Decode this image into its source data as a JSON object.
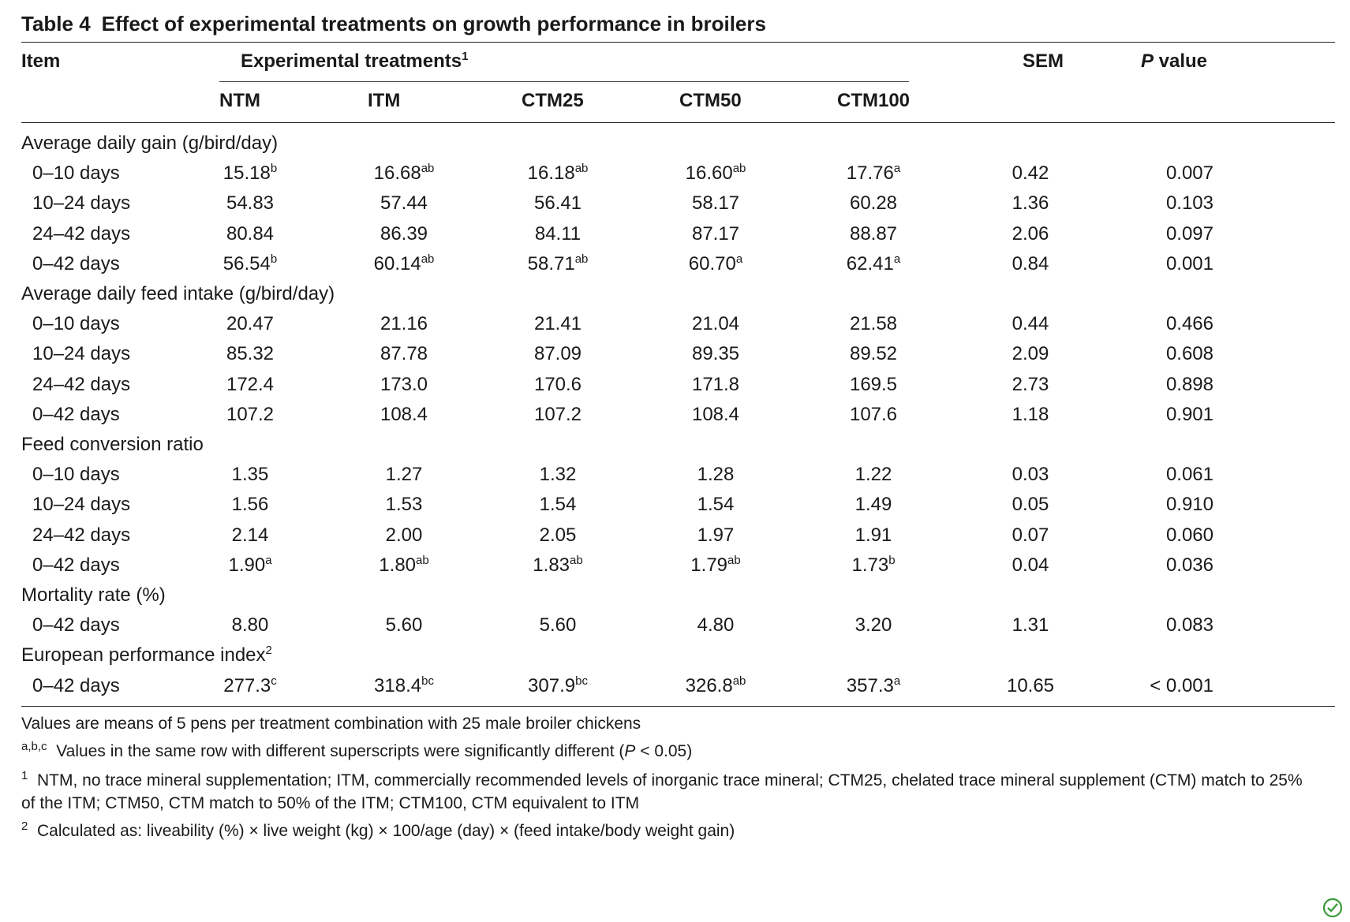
{
  "title": {
    "number": "Table 4",
    "text": "Effect of experimental treatments on growth performance in broilers"
  },
  "header": {
    "item": "Item",
    "group": "Experimental treatments",
    "group_sup": "1",
    "treatments": [
      "NTM",
      "ITM",
      "CTM25",
      "CTM50",
      "CTM100"
    ],
    "sem": "SEM",
    "pvalue_italic": "P",
    "pvalue_rest": " value"
  },
  "sections": [
    {
      "label": "Average daily gain (g/bird/day)",
      "label_sup": "",
      "rows": [
        {
          "item": "0–10 days",
          "values": [
            {
              "v": "15.18",
              "s": "b"
            },
            {
              "v": "16.68",
              "s": "ab"
            },
            {
              "v": "16.18",
              "s": "ab"
            },
            {
              "v": "16.60",
              "s": "ab"
            },
            {
              "v": "17.76",
              "s": "a"
            }
          ],
          "sem": "0.42",
          "p": "0.007"
        },
        {
          "item": "10–24 days",
          "values": [
            {
              "v": "54.83",
              "s": ""
            },
            {
              "v": "57.44",
              "s": ""
            },
            {
              "v": "56.41",
              "s": ""
            },
            {
              "v": "58.17",
              "s": ""
            },
            {
              "v": "60.28",
              "s": ""
            }
          ],
          "sem": "1.36",
          "p": "0.103"
        },
        {
          "item": "24–42 days",
          "values": [
            {
              "v": "80.84",
              "s": ""
            },
            {
              "v": "86.39",
              "s": ""
            },
            {
              "v": "84.11",
              "s": ""
            },
            {
              "v": "87.17",
              "s": ""
            },
            {
              "v": "88.87",
              "s": ""
            }
          ],
          "sem": "2.06",
          "p": "0.097"
        },
        {
          "item": "0–42 days",
          "values": [
            {
              "v": "56.54",
              "s": "b"
            },
            {
              "v": "60.14",
              "s": "ab"
            },
            {
              "v": "58.71",
              "s": "ab"
            },
            {
              "v": "60.70",
              "s": "a"
            },
            {
              "v": "62.41",
              "s": "a"
            }
          ],
          "sem": "0.84",
          "p": "0.001"
        }
      ]
    },
    {
      "label": "Average daily feed intake (g/bird/day)",
      "label_sup": "",
      "rows": [
        {
          "item": "0–10 days",
          "values": [
            {
              "v": "20.47",
              "s": ""
            },
            {
              "v": "21.16",
              "s": ""
            },
            {
              "v": "21.41",
              "s": ""
            },
            {
              "v": "21.04",
              "s": ""
            },
            {
              "v": "21.58",
              "s": ""
            }
          ],
          "sem": "0.44",
          "p": "0.466"
        },
        {
          "item": "10–24 days",
          "values": [
            {
              "v": "85.32",
              "s": ""
            },
            {
              "v": "87.78",
              "s": ""
            },
            {
              "v": "87.09",
              "s": ""
            },
            {
              "v": "89.35",
              "s": ""
            },
            {
              "v": "89.52",
              "s": ""
            }
          ],
          "sem": "2.09",
          "p": "0.608"
        },
        {
          "item": "24–42 days",
          "values": [
            {
              "v": "172.4",
              "s": ""
            },
            {
              "v": "173.0",
              "s": ""
            },
            {
              "v": "170.6",
              "s": ""
            },
            {
              "v": "171.8",
              "s": ""
            },
            {
              "v": "169.5",
              "s": ""
            }
          ],
          "sem": "2.73",
          "p": "0.898"
        },
        {
          "item": "0–42 days",
          "values": [
            {
              "v": "107.2",
              "s": ""
            },
            {
              "v": "108.4",
              "s": ""
            },
            {
              "v": "107.2",
              "s": ""
            },
            {
              "v": "108.4",
              "s": ""
            },
            {
              "v": "107.6",
              "s": ""
            }
          ],
          "sem": "1.18",
          "p": "0.901"
        }
      ]
    },
    {
      "label": "Feed conversion ratio",
      "label_sup": "",
      "rows": [
        {
          "item": "0–10 days",
          "values": [
            {
              "v": "1.35",
              "s": ""
            },
            {
              "v": "1.27",
              "s": ""
            },
            {
              "v": "1.32",
              "s": ""
            },
            {
              "v": "1.28",
              "s": ""
            },
            {
              "v": "1.22",
              "s": ""
            }
          ],
          "sem": "0.03",
          "p": "0.061"
        },
        {
          "item": "10–24 days",
          "values": [
            {
              "v": "1.56",
              "s": ""
            },
            {
              "v": "1.53",
              "s": ""
            },
            {
              "v": "1.54",
              "s": ""
            },
            {
              "v": "1.54",
              "s": ""
            },
            {
              "v": "1.49",
              "s": ""
            }
          ],
          "sem": "0.05",
          "p": "0.910"
        },
        {
          "item": "24–42 days",
          "values": [
            {
              "v": "2.14",
              "s": ""
            },
            {
              "v": "2.00",
              "s": ""
            },
            {
              "v": "2.05",
              "s": ""
            },
            {
              "v": "1.97",
              "s": ""
            },
            {
              "v": "1.91",
              "s": ""
            }
          ],
          "sem": "0.07",
          "p": "0.060"
        },
        {
          "item": "0–42 days",
          "values": [
            {
              "v": "1.90",
              "s": "a"
            },
            {
              "v": "1.80",
              "s": "ab"
            },
            {
              "v": "1.83",
              "s": "ab"
            },
            {
              "v": "1.79",
              "s": "ab"
            },
            {
              "v": "1.73",
              "s": "b"
            }
          ],
          "sem": "0.04",
          "p": "0.036"
        }
      ]
    },
    {
      "label": "Mortality rate (%)",
      "label_sup": "",
      "rows": [
        {
          "item": "0–42 days",
          "values": [
            {
              "v": "8.80",
              "s": ""
            },
            {
              "v": "5.60",
              "s": ""
            },
            {
              "v": "5.60",
              "s": ""
            },
            {
              "v": "4.80",
              "s": ""
            },
            {
              "v": "3.20",
              "s": ""
            }
          ],
          "sem": "1.31",
          "p": "0.083"
        }
      ]
    },
    {
      "label": "European performance index",
      "label_sup": "2",
      "rows": [
        {
          "item": "0–42 days",
          "values": [
            {
              "v": "277.3",
              "s": "c"
            },
            {
              "v": "318.4",
              "s": "bc"
            },
            {
              "v": "307.9",
              "s": "bc"
            },
            {
              "v": "326.8",
              "s": "ab"
            },
            {
              "v": "357.3",
              "s": "a"
            }
          ],
          "sem": "10.65",
          "p": "< 0.001"
        }
      ]
    }
  ],
  "footnotes": {
    "general": "Values are means of 5 pens per treatment combination with 25 male broiler chickens",
    "sig_marker": "a,b,c",
    "sig_text": "Values in the same row with different superscripts were significantly different (",
    "sig_p": "P",
    "sig_tail": " < 0.05)",
    "fn1_marker": "1",
    "fn1_text": "NTM, no trace mineral supplementation; ITM, commercially recommended levels of inorganic trace mineral; CTM25, chelated trace mineral supplement (CTM) match to 25% of the ITM; CTM50, CTM match to 50% of the ITM; CTM100, CTM equivalent to ITM",
    "fn2_marker": "2",
    "fn2_text": "Calculated as: liveability (%) × live weight (kg) × 100/age (day) × (feed intake/body weight gain)"
  }
}
